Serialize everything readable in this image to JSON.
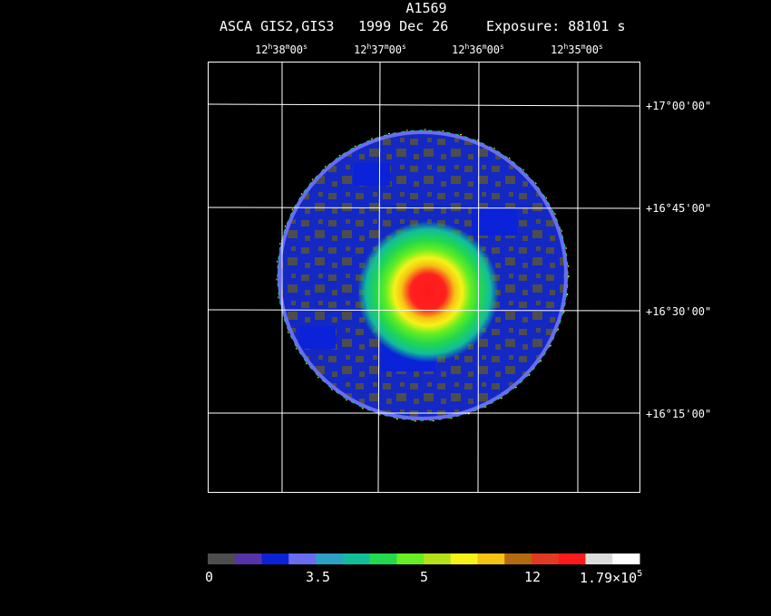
{
  "header": {
    "object": "A1569",
    "instrument": "ASCA GIS2,GIS3",
    "date": "1999 Dec 26",
    "exposure": "Exposure: 88101 s"
  },
  "ra_ticks": [
    {
      "h": "12",
      "m": "38",
      "s": "00"
    },
    {
      "h": "12",
      "m": "37",
      "s": "00"
    },
    {
      "h": "12",
      "m": "36",
      "s": "00"
    },
    {
      "h": "12",
      "m": "35",
      "s": "00"
    }
  ],
  "dec_ticks": [
    "+17°00'00\"",
    "+16°45'00\"",
    "+16°30'00\"",
    "+16°15'00\""
  ],
  "colorbar": {
    "colors": [
      "#4d4d4d",
      "#5533a8",
      "#0a22d8",
      "#6a6cf0",
      "#2e9fc6",
      "#12bd9a",
      "#22d84c",
      "#66ee22",
      "#b2e21a",
      "#f6f217",
      "#f5c314",
      "#b36b10",
      "#e23a22",
      "#ff1a1a",
      "#dcdcdc",
      "#ffffff"
    ],
    "labels": [
      "0",
      "3.5",
      "5",
      "12"
    ],
    "max_label_base": "1.79×10",
    "max_label_exp": "5"
  }
}
